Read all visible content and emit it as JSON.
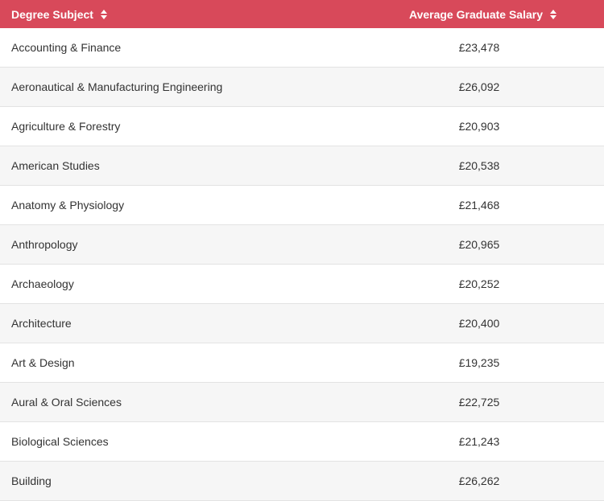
{
  "header": {
    "subject_label": "Degree Subject",
    "salary_label": "Average Graduate Salary"
  },
  "rows": [
    {
      "subject": "Accounting & Finance",
      "salary": "£23,478"
    },
    {
      "subject": "Aeronautical & Manufacturing Engineering",
      "salary": "£26,092"
    },
    {
      "subject": "Agriculture & Forestry",
      "salary": "£20,903"
    },
    {
      "subject": "American Studies",
      "salary": "£20,538"
    },
    {
      "subject": "Anatomy & Physiology",
      "salary": "£21,468"
    },
    {
      "subject": "Anthropology",
      "salary": "£20,965"
    },
    {
      "subject": "Archaeology",
      "salary": "£20,252"
    },
    {
      "subject": "Architecture",
      "salary": "£20,400"
    },
    {
      "subject": "Art & Design",
      "salary": "£19,235"
    },
    {
      "subject": "Aural & Oral Sciences",
      "salary": "£22,725"
    },
    {
      "subject": "Biological Sciences",
      "salary": "£21,243"
    },
    {
      "subject": "Building",
      "salary": "£26,262"
    }
  ],
  "colors": {
    "header_bg": "#d8495a",
    "header_text": "#ffffff",
    "row_alt_bg": "#f6f6f6",
    "border": "#e3e3e3"
  },
  "icons": {
    "sort": "sort-icon"
  }
}
